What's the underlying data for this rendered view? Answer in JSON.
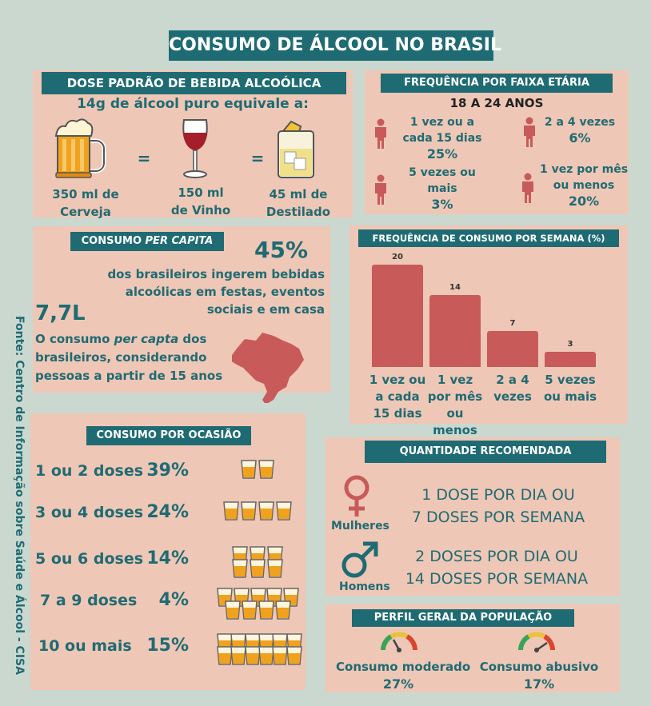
{
  "title": "CONSUMO DE ÁLCOOL NO BRASIL",
  "source": "Fonte: Centro de Informação sobre Saúde e Álcool - CISA",
  "dose": {
    "header": "DOSE PADRÃO DE BEBIDA ALCOÓLICA",
    "subtitle": "14g de álcool puro equivale a:",
    "eq": "=",
    "items": [
      {
        "line1": "350 ml de",
        "line2": "Cerveja",
        "icon": "beer-mug-icon"
      },
      {
        "line1": "150 ml",
        "line2": "de Vinho",
        "icon": "wine-glass-icon"
      },
      {
        "line1": "45 ml de",
        "line2": "Destilado",
        "icon": "spirit-glass-icon"
      }
    ]
  },
  "freq_age": {
    "header": "FREQUÊNCIA POR FAIXA ETÁRIA",
    "subtitle": "18 A 24 ANOS",
    "items": [
      {
        "l1": "1 vez ou a",
        "l2": "cada 15 dias",
        "value": "25%"
      },
      {
        "l1": "2 a 4 vezes",
        "value": "6%"
      },
      {
        "l1": "5 vezes ou",
        "l2": "mais",
        "value": "3%"
      },
      {
        "l1": "1 vez por mês",
        "l2": "ou menos",
        "value": "20%"
      }
    ]
  },
  "per_capita": {
    "header_a": "CONSUMO ",
    "header_b": "PER CAPITA",
    "pct": "45%",
    "pct_text": [
      "dos brasileiros ingerem bebidas",
      "alcoólicas em festas, eventos",
      "sociais e em casa"
    ],
    "liters": "7,7L",
    "l1a": "O consumo ",
    "l1b": "per capta",
    "l1c": " dos",
    "l2": "brasileiros, considerando",
    "l3": "pessoas a partir de 15 anos",
    "map_icon": "brazil-map-icon"
  },
  "weekly": {
    "header": "FREQUÊNCIA DE CONSUMO POR SEMANA (%)",
    "bar_color": "#c85a5a"
  },
  "chart_data": {
    "type": "bar",
    "title": "FREQUÊNCIA DE CONSUMO POR SEMANA (%)",
    "categories": [
      "1 vez ou a cada 15 dias",
      "1 vez por mês ou menos",
      "2 a 4 vezes",
      "5 vezes ou mais"
    ],
    "values": [
      20,
      14,
      7,
      3
    ],
    "ylim": [
      0,
      20
    ]
  },
  "occasion": {
    "header": "CONSUMO POR OCASIÃO",
    "rows": [
      {
        "label": "1 ou 2 doses",
        "value": "39%",
        "glasses": 2
      },
      {
        "label": "3 ou 4 doses",
        "value": "24%",
        "glasses": 4
      },
      {
        "label": "5 ou 6 doses",
        "value": "14%",
        "glasses": 6
      },
      {
        "label": "7 a 9 doses",
        "value": "4%",
        "glasses": 9
      },
      {
        "label": "10 ou mais",
        "value": "15%",
        "glasses": 12
      }
    ]
  },
  "recommended": {
    "header": "QUANTIDADE RECOMENDADA",
    "women_label": "Mulheres",
    "women_l1": "1 DOSE POR DIA OU",
    "women_l2": "7 DOSES POR SEMANA",
    "men_label": "Homens",
    "men_l1": "2 DOSES POR DIA OU",
    "men_l2": "14 DOSES POR SEMANA"
  },
  "profile": {
    "header": "PERFIL GERAL DA POPULAÇÃO",
    "moderate_label": "Consumo moderado",
    "moderate_value": "27%",
    "abusive_label": "Consumo abusivo",
    "abusive_value": "17%"
  },
  "colors": {
    "background": "#cbd8d0",
    "panel": "#efc7b6",
    "teal": "#1f6b73",
    "red": "#c85a5a",
    "beer": "#f0a21e"
  }
}
